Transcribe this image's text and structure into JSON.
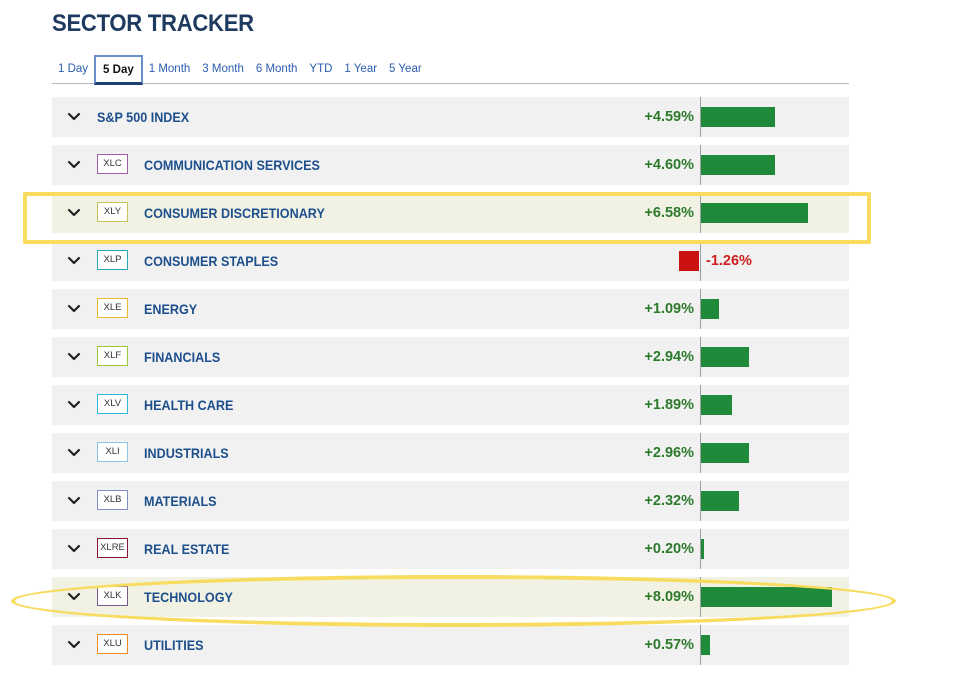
{
  "title": "SECTOR TRACKER",
  "tabs": [
    {
      "label": "1 Day",
      "active": false
    },
    {
      "label": "5 Day",
      "active": true
    },
    {
      "label": "1 Month",
      "active": false
    },
    {
      "label": "3 Month",
      "active": false
    },
    {
      "label": "6 Month",
      "active": false
    },
    {
      "label": "YTD",
      "active": false
    },
    {
      "label": "1 Year",
      "active": false
    },
    {
      "label": "5 Year",
      "active": false
    }
  ],
  "rows": [
    {
      "ticker": "",
      "name": "S&P 500 INDEX",
      "change": "+4.59%",
      "value": 4.59,
      "badge_color": ""
    },
    {
      "ticker": "XLC",
      "name": "COMMUNICATION SERVICES",
      "change": "+4.60%",
      "value": 4.6,
      "badge_color": "#a05fa8"
    },
    {
      "ticker": "XLY",
      "name": "CONSUMER DISCRETIONARY",
      "change": "+6.58%",
      "value": 6.58,
      "badge_color": "#c9c15a",
      "highlight": "rect"
    },
    {
      "ticker": "XLP",
      "name": "CONSUMER STAPLES",
      "change": "-1.26%",
      "value": -1.26,
      "badge_color": "#2fa8b8"
    },
    {
      "ticker": "XLE",
      "name": "ENERGY",
      "change": "+1.09%",
      "value": 1.09,
      "badge_color": "#f0b830"
    },
    {
      "ticker": "XLF",
      "name": "FINANCIALS",
      "change": "+2.94%",
      "value": 2.94,
      "badge_color": "#9ac640"
    },
    {
      "ticker": "XLV",
      "name": "HEALTH CARE",
      "change": "+1.89%",
      "value": 1.89,
      "badge_color": "#2fb5e0"
    },
    {
      "ticker": "XLI",
      "name": "INDUSTRIALS",
      "change": "+2.96%",
      "value": 2.96,
      "badge_color": "#8fc4e6"
    },
    {
      "ticker": "XLB",
      "name": "MATERIALS",
      "change": "+2.32%",
      "value": 2.32,
      "badge_color": "#7f8fc8"
    },
    {
      "ticker": "XLRE",
      "name": "REAL ESTATE",
      "change": "+0.20%",
      "value": 0.2,
      "badge_color": "#8a1530"
    },
    {
      "ticker": "XLK",
      "name": "TECHNOLOGY",
      "change": "+8.09%",
      "value": 8.09,
      "badge_color": "#7a5a8a",
      "highlight": "ellipse"
    },
    {
      "ticker": "XLU",
      "name": "UTILITIES",
      "change": "+0.57%",
      "value": 0.57,
      "badge_color": "#f08c20"
    }
  ],
  "colors": {
    "positive": "#1f8a3a",
    "negative": "#cc1111",
    "title": "#1f3a5f",
    "name": "#1d4f8c",
    "highlight": "#f7dc60"
  },
  "icons": {
    "expand": "chevron-down-icon"
  }
}
